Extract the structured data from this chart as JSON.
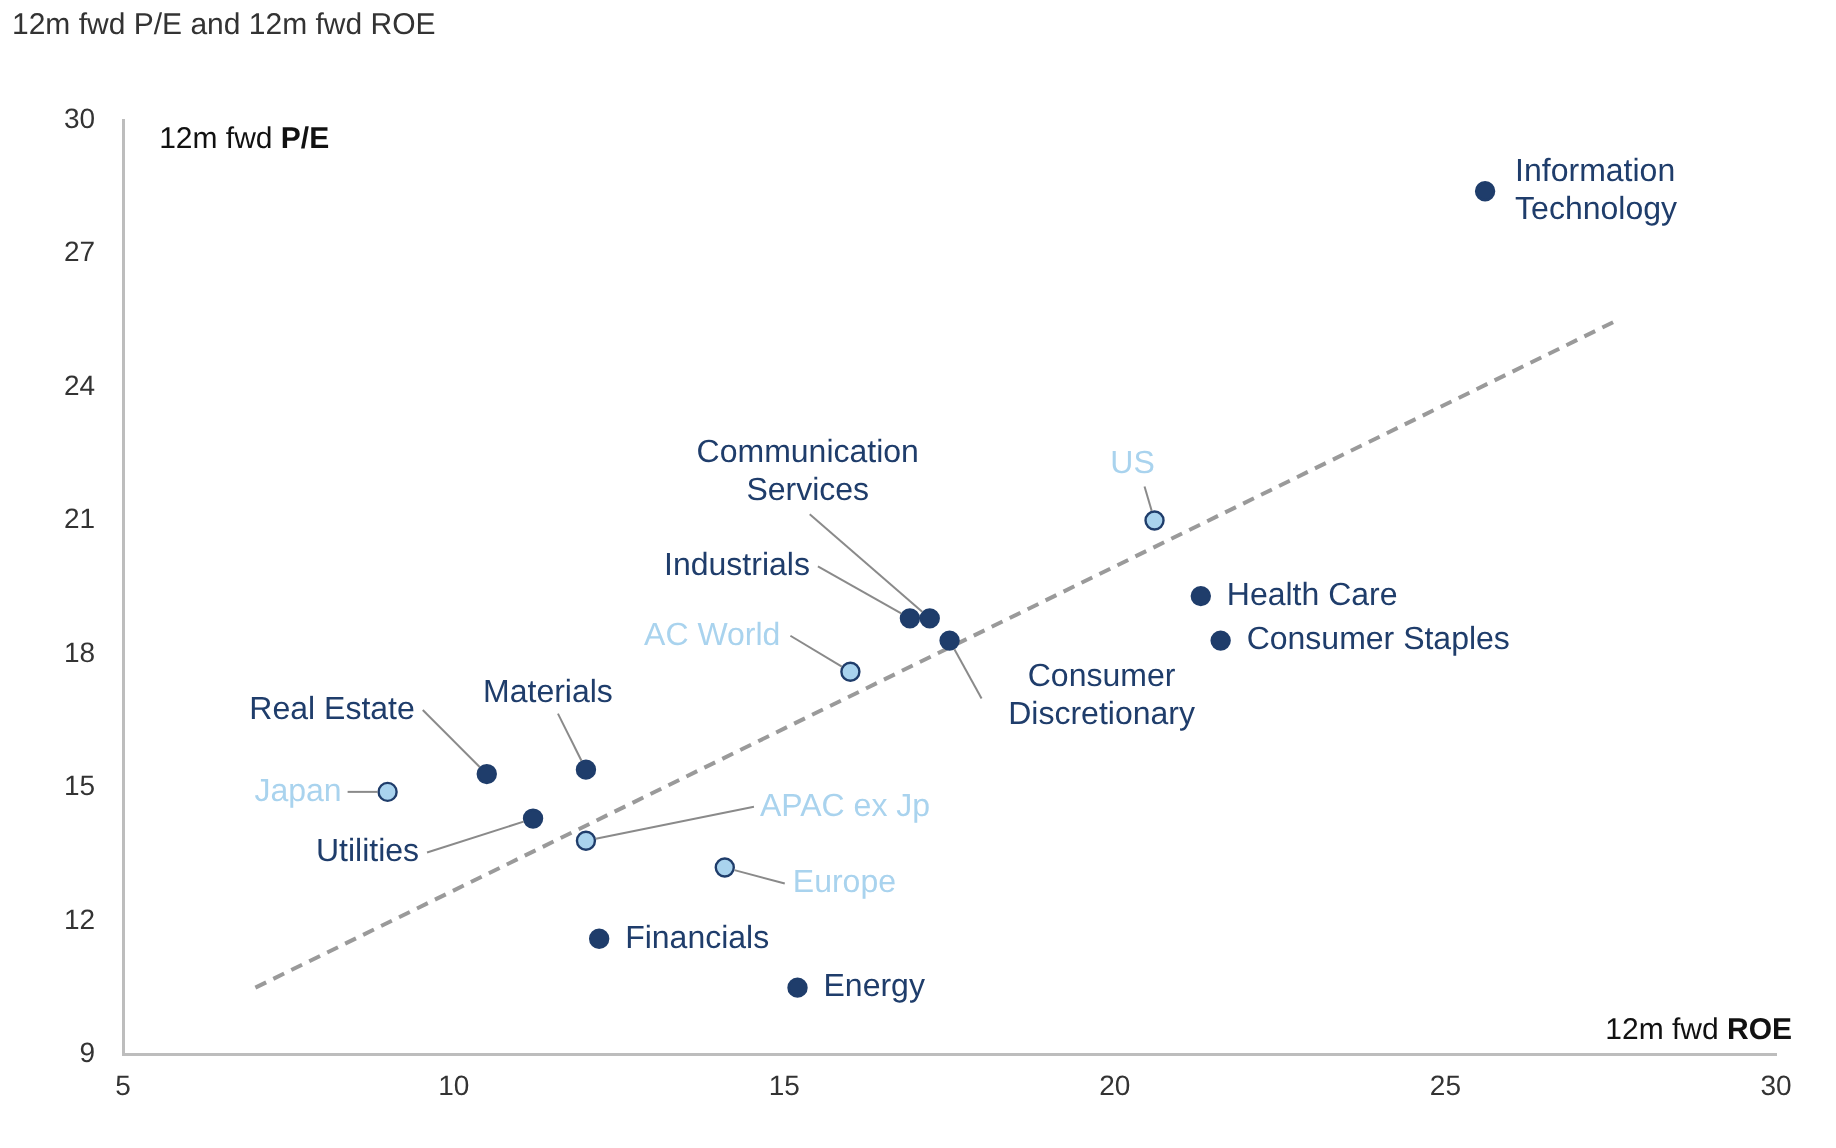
{
  "chart_data": {
    "type": "scatter",
    "title": "12m fwd P/E and 12m fwd ROE",
    "xlabel": "12m fwd ROE",
    "ylabel": "12m fwd P/E",
    "xlim": [
      5,
      30
    ],
    "xticks": [
      5,
      10,
      15,
      20,
      25,
      30
    ],
    "ylim": [
      9,
      30
    ],
    "yticks": [
      9,
      12,
      15,
      18,
      21,
      24,
      27,
      30
    ],
    "grid": false,
    "legend": false,
    "marker": "circle",
    "series": [
      {
        "color": "#1f3d6b",
        "x": [
          25.6,
          17.2,
          16.9,
          21.3,
          21.6,
          17.5,
          10.5,
          12.0,
          11.2,
          12.2,
          15.2
        ],
        "values": [
          28.4,
          18.8,
          18.8,
          19.3,
          18.3,
          18.3,
          15.3,
          15.4,
          14.3,
          11.6,
          10.5
        ]
      },
      {
        "color": "#a9d3ee",
        "x": [
          20.6,
          16.0,
          9.0,
          12.0,
          14.1
        ],
        "values": [
          21.0,
          17.6,
          14.9,
          13.8,
          13.2
        ]
      },
      {
        "type": "line",
        "color": "#9a9a9a",
        "line_style": "dashed",
        "marker": "none",
        "x": [
          7.0,
          27.6
        ],
        "values": [
          10.5,
          25.5
        ]
      }
    ],
    "annotations": [
      {
        "text": "Information Technology",
        "x": 25.6,
        "y": 28.4
      },
      {
        "text": "Communication Services",
        "x": 17.2,
        "y": 18.8
      },
      {
        "text": "Industrials",
        "x": 16.9,
        "y": 18.8
      },
      {
        "text": "Health Care",
        "x": 21.3,
        "y": 19.3
      },
      {
        "text": "Consumer Staples",
        "x": 21.6,
        "y": 18.3
      },
      {
        "text": "Consumer Discretionary",
        "x": 17.5,
        "y": 18.3
      },
      {
        "text": "Real Estate",
        "x": 10.5,
        "y": 15.3
      },
      {
        "text": "Materials",
        "x": 12.0,
        "y": 15.4
      },
      {
        "text": "Utilities",
        "x": 11.2,
        "y": 14.3
      },
      {
        "text": "Financials",
        "x": 12.2,
        "y": 11.6
      },
      {
        "text": "Energy",
        "x": 15.2,
        "y": 10.5
      },
      {
        "text": "US",
        "x": 20.6,
        "y": 21.0
      },
      {
        "text": "AC World",
        "x": 16.0,
        "y": 17.6
      },
      {
        "text": "Japan",
        "x": 9.0,
        "y": 14.9
      },
      {
        "text": "APAC ex Jp",
        "x": 12.0,
        "y": 13.8
      },
      {
        "text": "Europe",
        "x": 14.1,
        "y": 13.2
      }
    ]
  }
}
